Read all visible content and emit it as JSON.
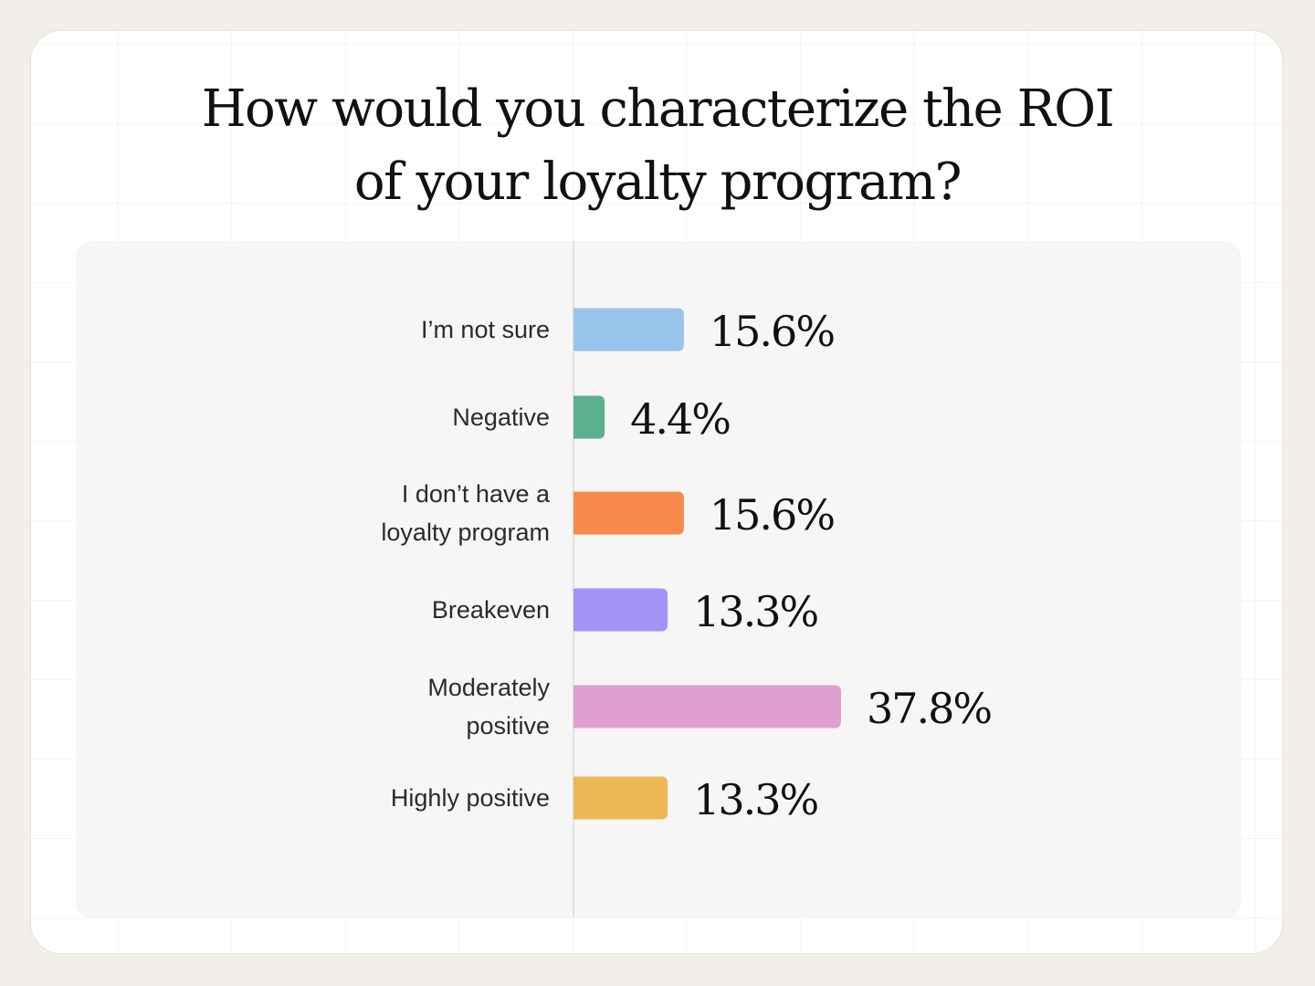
{
  "title": {
    "line1": "How would you characterize the ROI",
    "line2": "of your loyalty program?"
  },
  "chart_data": {
    "type": "bar",
    "orientation": "horizontal",
    "title": "How would you characterize the ROI of your loyalty program?",
    "xlabel": "",
    "ylabel": "",
    "grid": false,
    "categories": [
      [
        "I’m not sure"
      ],
      [
        "Negative"
      ],
      [
        "I don’t have a",
        "loyalty program"
      ],
      [
        "Breakeven"
      ],
      [
        "Moderately",
        "positive"
      ],
      [
        "Highly positive"
      ]
    ],
    "values": [
      15.6,
      4.4,
      15.6,
      13.3,
      37.8,
      13.3
    ],
    "value_labels": [
      "15.6%",
      "4.4%",
      "15.6%",
      "13.3%",
      "37.8%",
      "13.3%"
    ],
    "colors": [
      "#98c3ea",
      "#5caf8f",
      "#f98a4e",
      "#a295f5",
      "#e09fcf",
      "#ebb854"
    ]
  }
}
